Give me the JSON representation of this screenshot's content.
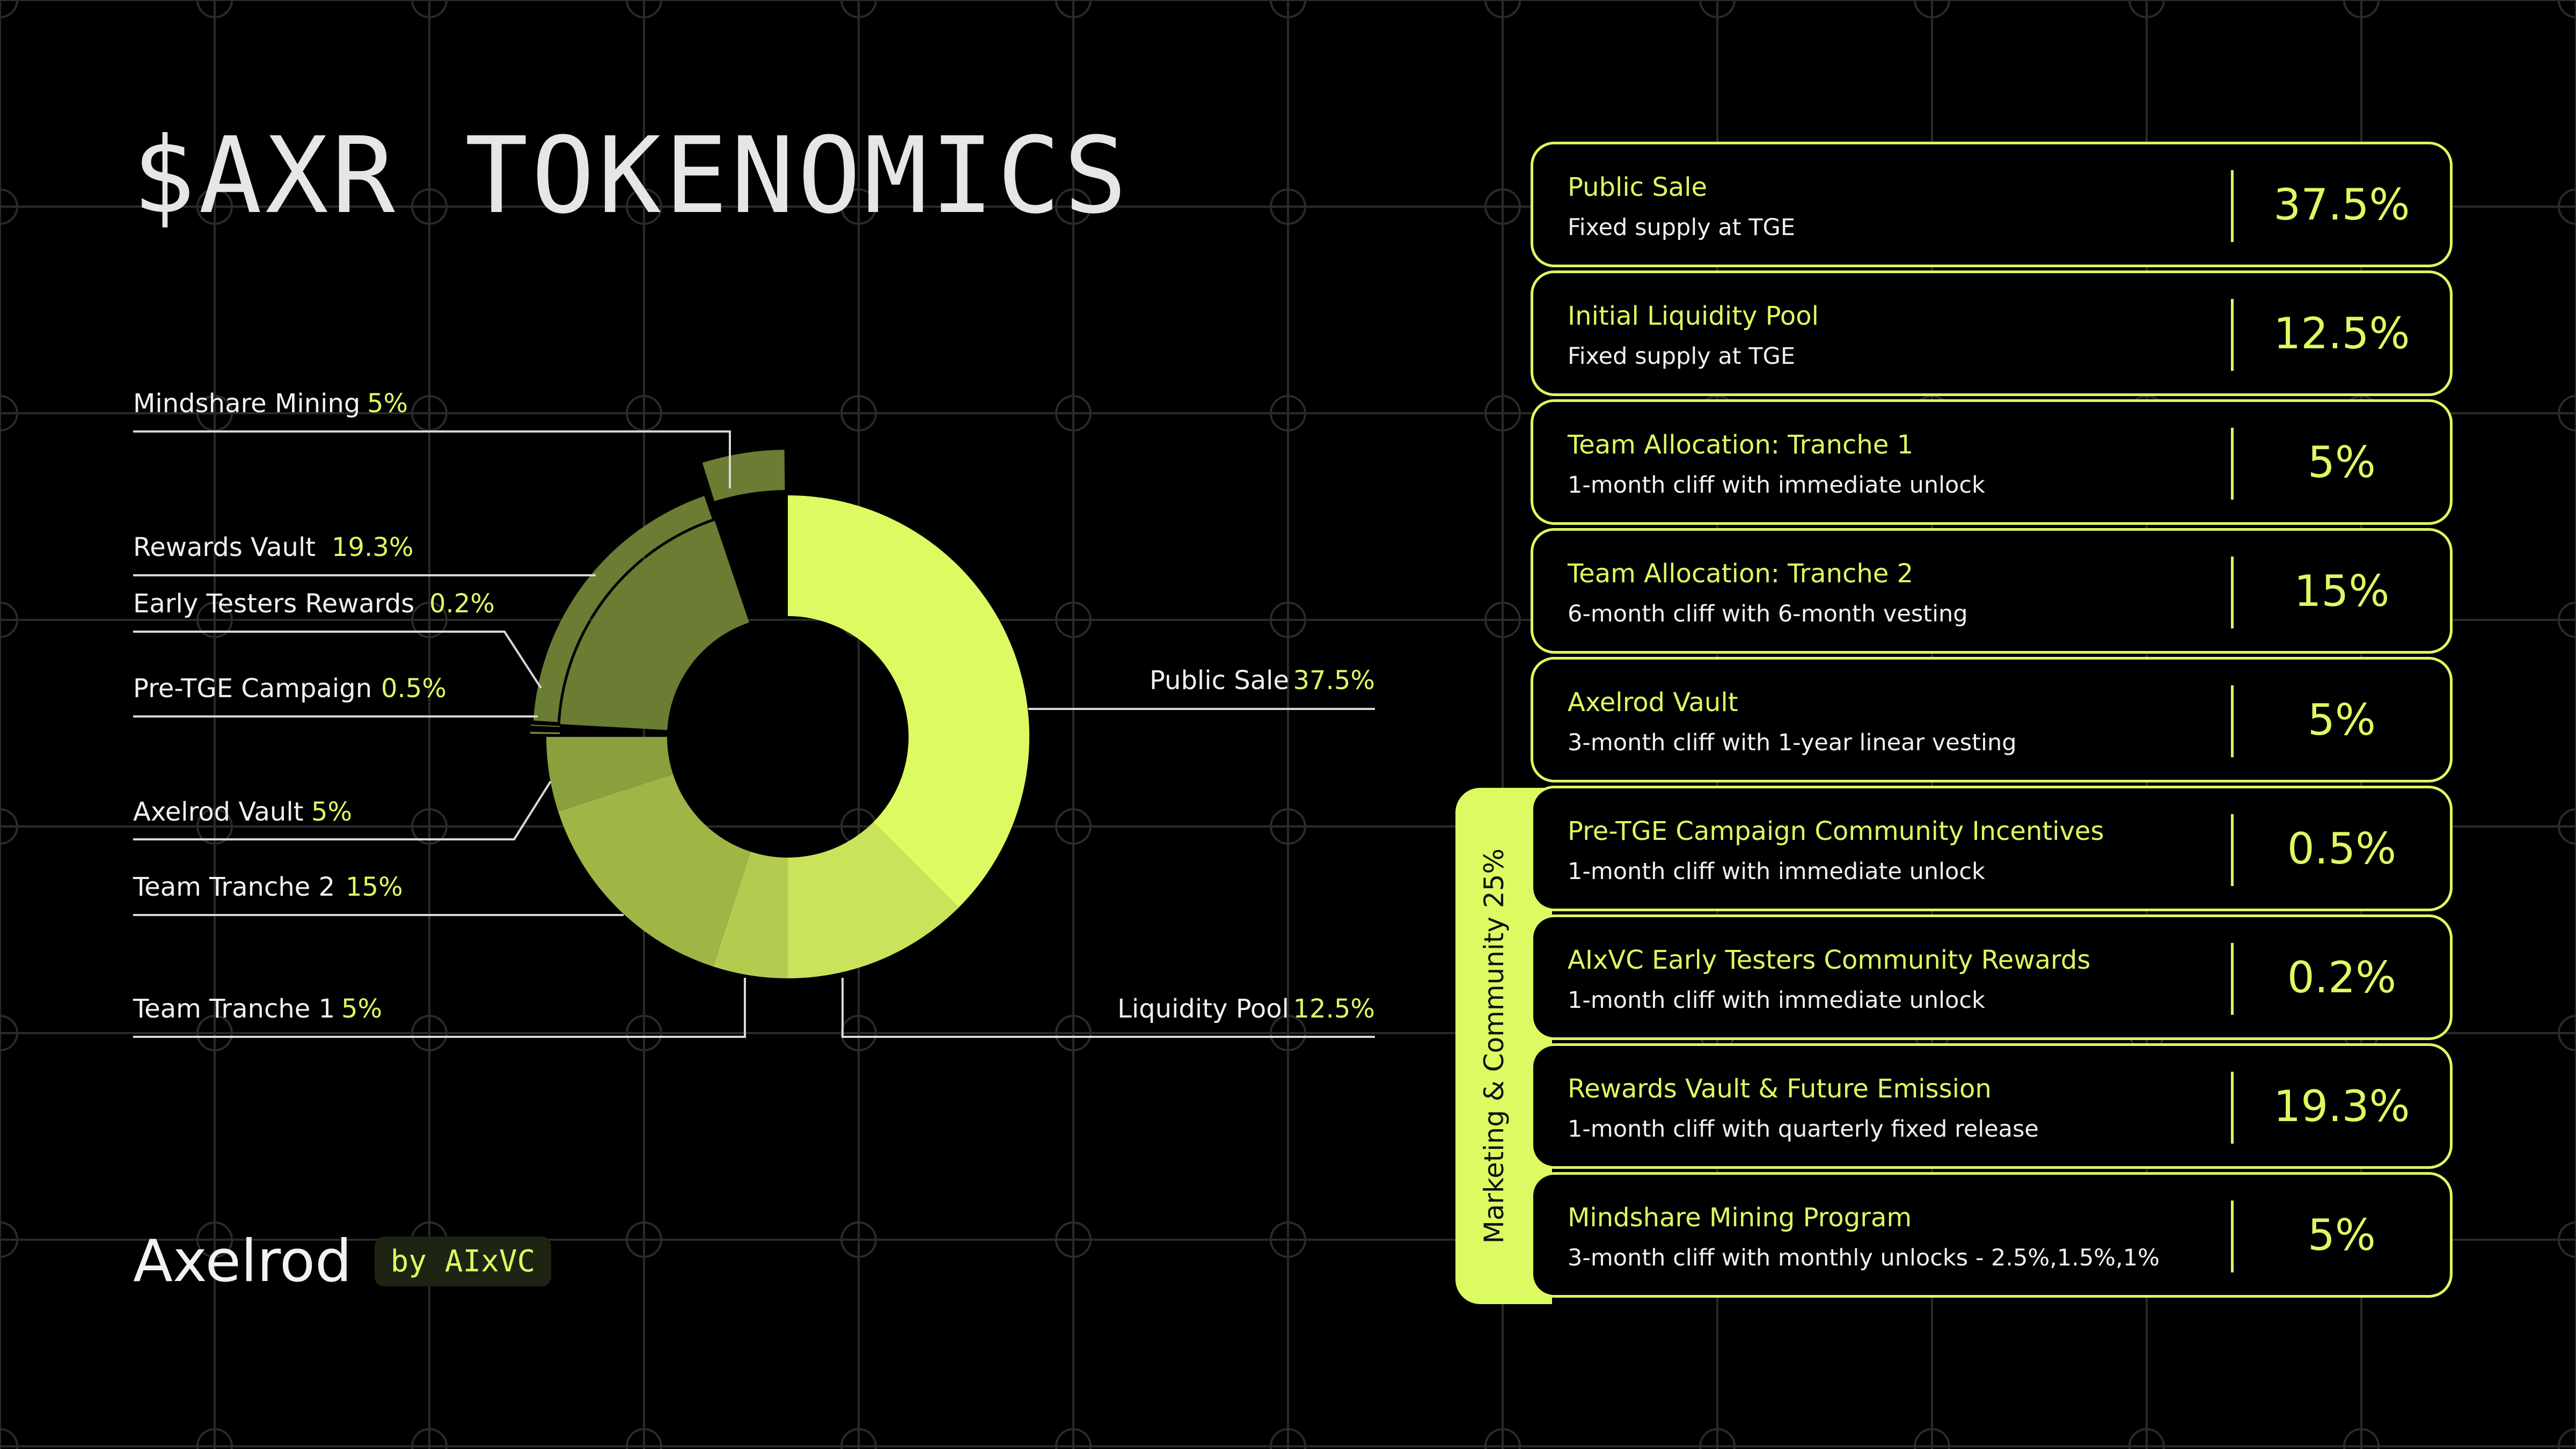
{
  "title": "$AXR TOKENOMICS",
  "brand": {
    "name": "Axelrod",
    "badge": "by AIxVC"
  },
  "group_label": "Marketing & Community 25%",
  "colors": {
    "accent": "#dcfb62",
    "background": "#000000",
    "grid": "#2a2a2a"
  },
  "chart_data": {
    "type": "pie",
    "variant": "donut",
    "slices": [
      {
        "label": "Public Sale",
        "value": 37.5,
        "value_label": "37.5%",
        "color": "#dcfb62"
      },
      {
        "label": "Liquidity Pool",
        "value": 12.5,
        "value_label": "12.5%",
        "color": "#c9e35a"
      },
      {
        "label": "Team Tranche 1",
        "value": 5,
        "value_label": "5%",
        "color": "#b3cc50"
      },
      {
        "label": "Team Tranche 2",
        "value": 15,
        "value_label": "15%",
        "color": "#9fb646"
      },
      {
        "label": "Axelrod Vault",
        "value": 5,
        "value_label": "5%",
        "color": "#89a03d"
      },
      {
        "label": "Pre-TGE Campaign",
        "value": 0.5,
        "value_label": "0.5%",
        "color": "#76893a"
      },
      {
        "label": "Early Testers Rewards",
        "value": 0.2,
        "value_label": "0.2%",
        "color": "#76893a"
      },
      {
        "label": "Rewards Vault",
        "value": 19.3,
        "value_label": "19.3%",
        "color": "#6b7d32"
      },
      {
        "label": "Mindshare Mining",
        "value": 5,
        "value_label": "5%",
        "color": "#6b7d32"
      }
    ]
  },
  "allocations": [
    {
      "name": "Public Sale",
      "desc": "Fixed supply at TGE",
      "pct": "37.5%"
    },
    {
      "name": "Initial Liquidity Pool",
      "desc": "Fixed supply at TGE",
      "pct": "12.5%"
    },
    {
      "name": "Team Allocation: Tranche 1",
      "desc": "1-month cliff with immediate unlock",
      "pct": "5%"
    },
    {
      "name": "Team Allocation: Tranche 2",
      "desc": "6-month cliff with 6-month vesting",
      "pct": "15%"
    },
    {
      "name": "Axelrod Vault",
      "desc": "3-month cliff with 1-year linear vesting",
      "pct": "5%"
    },
    {
      "name": "Pre-TGE Campaign Community Incentives",
      "desc": "1-month cliff with immediate unlock",
      "pct": "0.5%"
    },
    {
      "name": "AIxVC Early Testers Community Rewards",
      "desc": "1-month cliff with immediate unlock",
      "pct": "0.2%"
    },
    {
      "name": "Rewards Vault & Future Emission",
      "desc": "1-month cliff with quarterly fixed release",
      "pct": "19.3%"
    },
    {
      "name": "Mindshare Mining Program",
      "desc": "3-month cliff with monthly unlocks - 2.5%,1.5%,1%",
      "pct": "5%"
    }
  ]
}
